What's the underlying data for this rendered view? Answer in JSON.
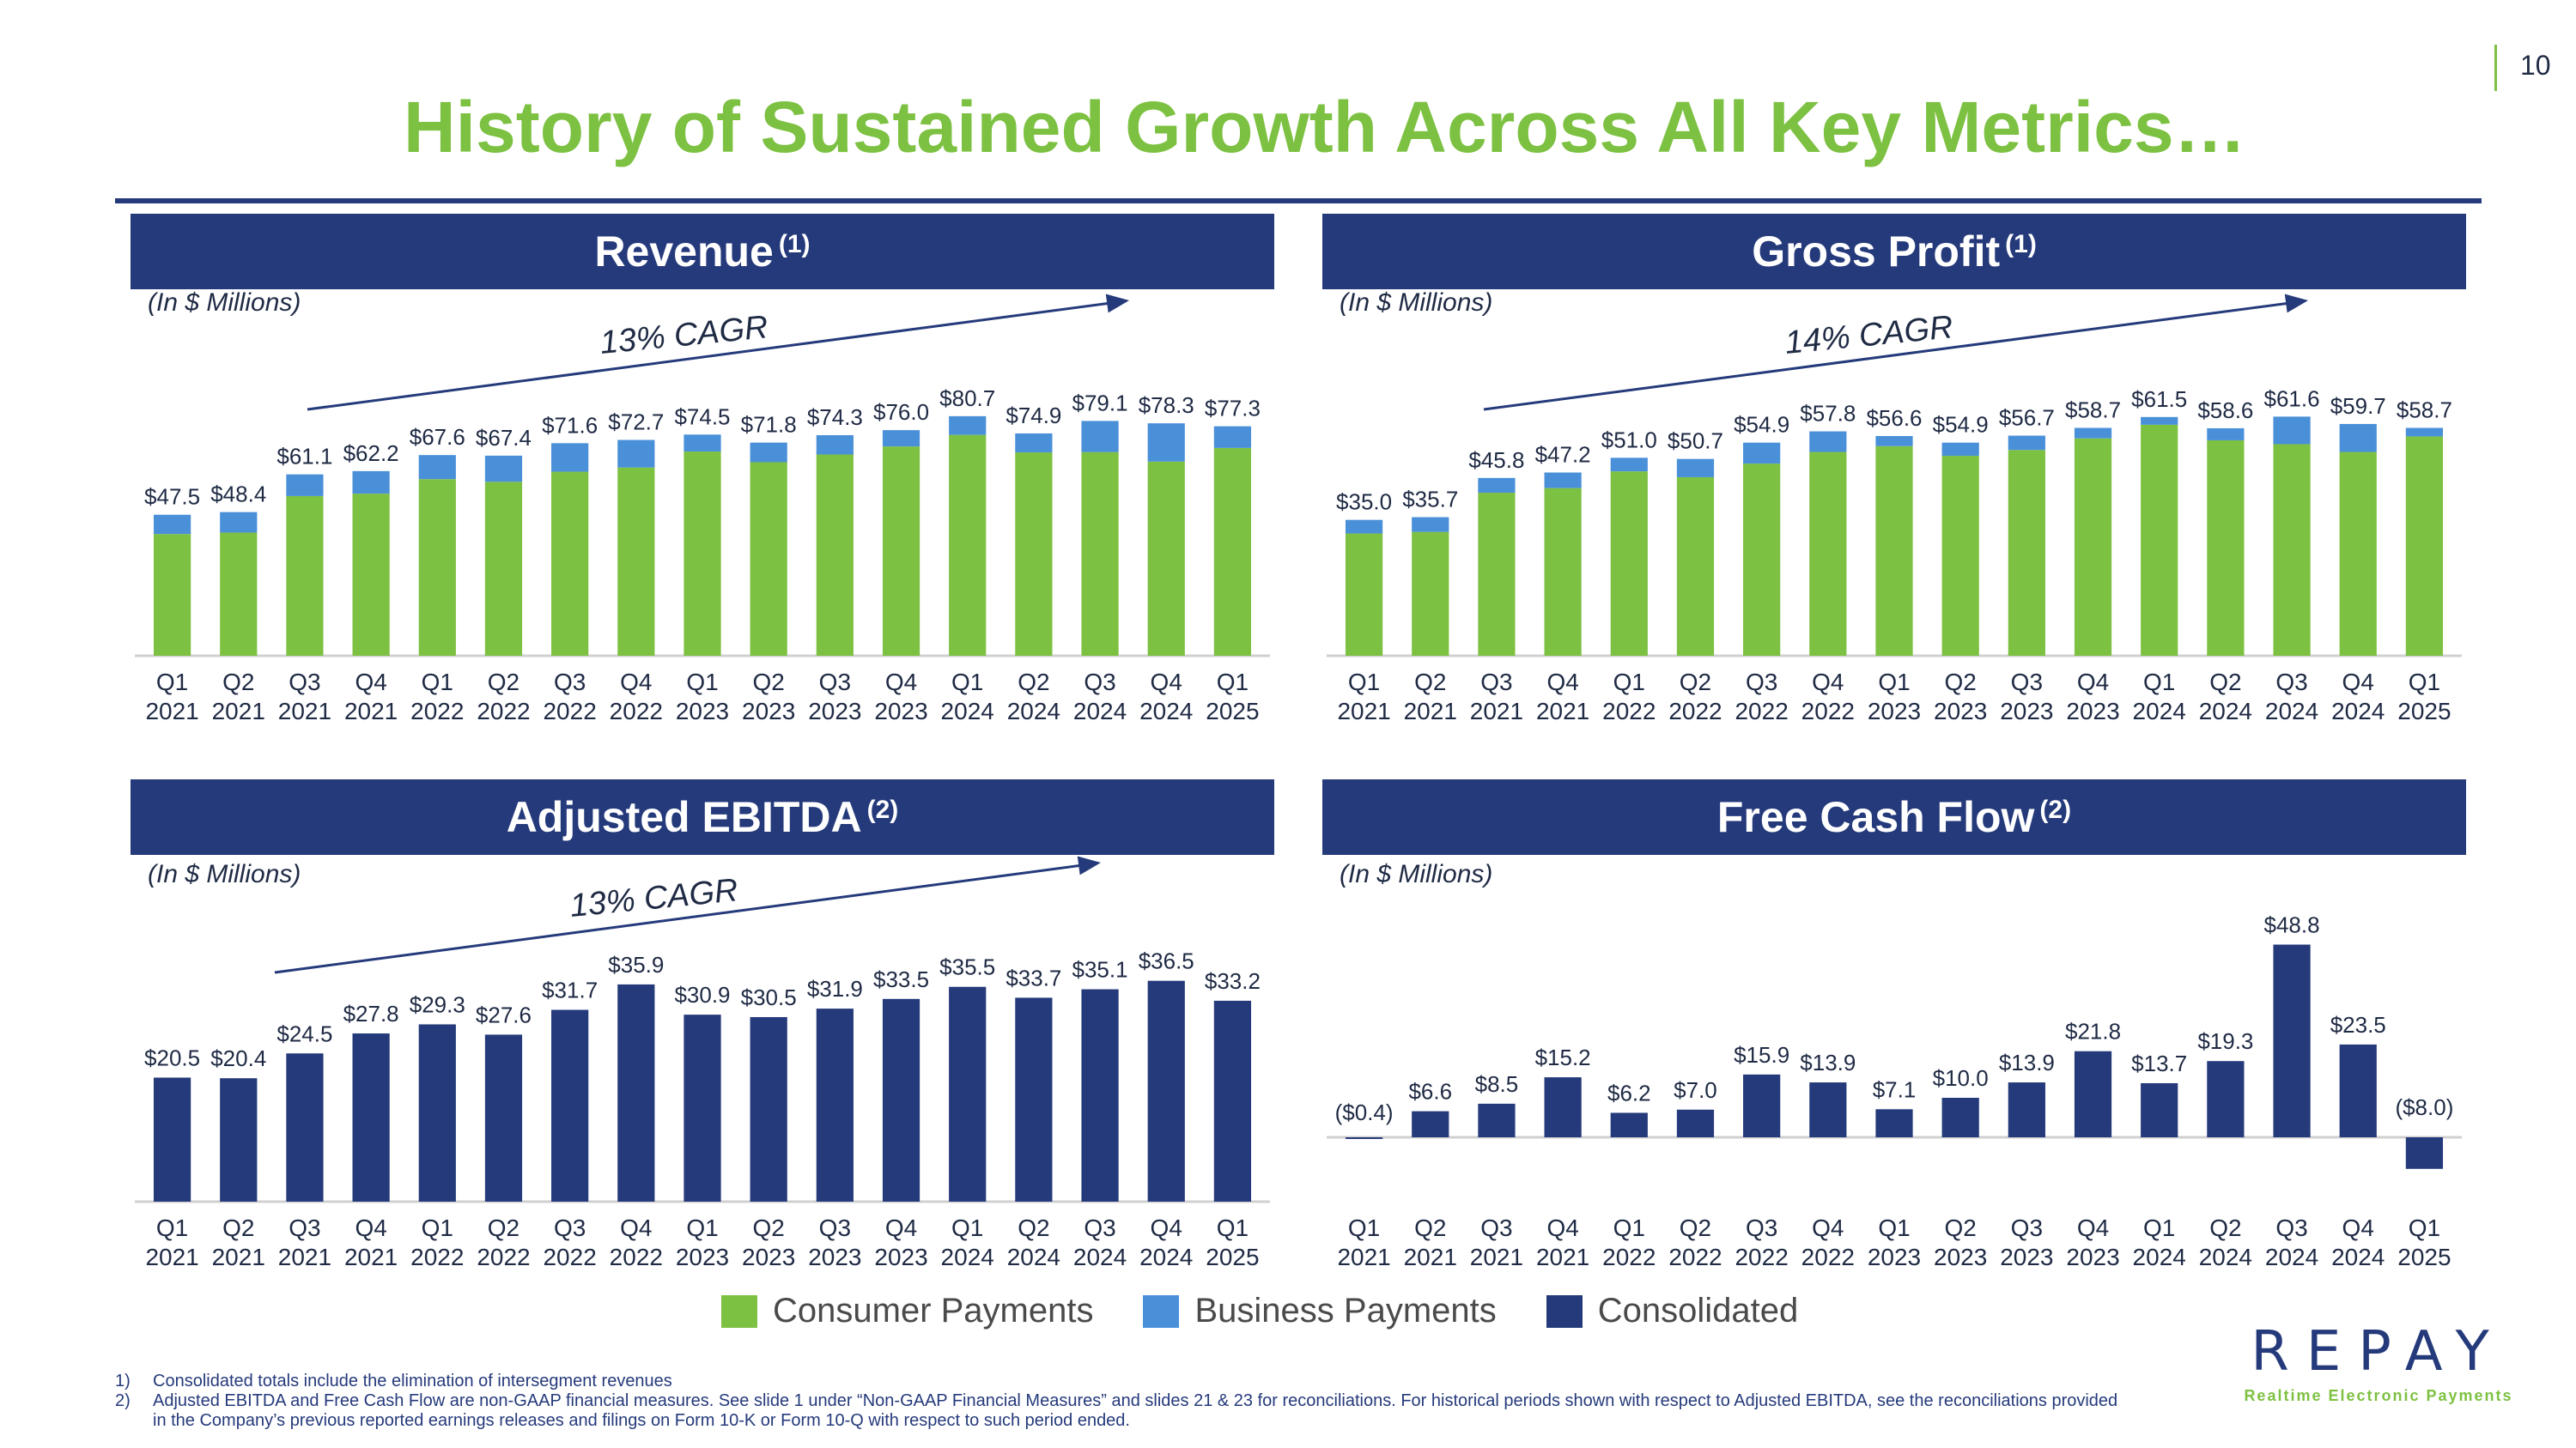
{
  "page_number": "10",
  "title": "History of Sustained Growth Across All Key Metrics…",
  "colors": {
    "consumer": "#7dc142",
    "business": "#4a90d9",
    "consolidated": "#253a7b",
    "title_green": "#7dc142",
    "header_navy": "#253a7b"
  },
  "units_note": "(In $ Millions)",
  "legend": [
    {
      "label": "Consumer Payments",
      "color": "#7dc142"
    },
    {
      "label": "Business Payments",
      "color": "#4a90d9"
    },
    {
      "label": "Consolidated",
      "color": "#253a7b"
    }
  ],
  "footnotes": [
    {
      "num": "1)",
      "text": "Consolidated totals include the elimination of intersegment revenues"
    },
    {
      "num": "2)",
      "text": "Adjusted EBITDA and Free Cash Flow are non-GAAP financial measures.  See slide 1 under “Non-GAAP Financial Measures” and slides 21 & 23 for reconciliations. For historical periods shown with respect to Adjusted EBITDA, see the reconciliations provided in the Company’s previous reported earnings releases and filings on Form 10-K or Form 10-Q with respect to such period ended."
    }
  ],
  "logo": {
    "word": "REPAY",
    "tagline": "Realtime Electronic Payments"
  },
  "chart_data": [
    {
      "type": "bar",
      "stacked": true,
      "title": "Revenue",
      "title_sup": "(1)",
      "note": "(In $ Millions)",
      "cagr": "13% CAGR",
      "quarters": [
        "Q1",
        "Q2",
        "Q3",
        "Q4",
        "Q1",
        "Q2",
        "Q3",
        "Q4",
        "Q1",
        "Q2",
        "Q3",
        "Q4",
        "Q1",
        "Q2",
        "Q3",
        "Q4",
        "Q1"
      ],
      "years": [
        "2021",
        "2021",
        "2021",
        "2021",
        "2022",
        "2022",
        "2022",
        "2022",
        "2023",
        "2023",
        "2023",
        "2023",
        "2024",
        "2024",
        "2024",
        "2024",
        "2025"
      ],
      "totals": [
        47.5,
        48.4,
        61.1,
        62.2,
        67.6,
        67.4,
        71.6,
        72.7,
        74.5,
        71.8,
        74.3,
        76.0,
        80.7,
        74.9,
        79.1,
        78.3,
        77.3
      ],
      "total_labels": [
        "$47.5",
        "$48.4",
        "$61.1",
        "$62.2",
        "$67.6",
        "$67.4",
        "$71.6",
        "$72.7",
        "$74.5",
        "$71.8",
        "$74.3",
        "$76.0",
        "$80.7",
        "$74.9",
        "$79.1",
        "$78.3",
        "$77.3"
      ],
      "series": [
        {
          "name": "Consumer Payments",
          "values": [
            41.0,
            41.5,
            53.8,
            54.6,
            59.5,
            58.6,
            62.0,
            63.4,
            68.8,
            65.2,
            67.8,
            70.5,
            74.4,
            68.5,
            68.6,
            65.4,
            70.0
          ]
        },
        {
          "name": "Business Payments",
          "values": [
            6.5,
            6.9,
            7.3,
            7.6,
            8.1,
            8.8,
            9.6,
            9.3,
            5.7,
            6.6,
            6.5,
            5.5,
            6.3,
            6.4,
            10.5,
            12.9,
            7.3
          ]
        }
      ],
      "ylim": [
        0,
        85
      ]
    },
    {
      "type": "bar",
      "stacked": true,
      "title": "Gross Profit",
      "title_sup": "(1)",
      "note": "(In $ Millions)",
      "cagr": "14% CAGR",
      "quarters": [
        "Q1",
        "Q2",
        "Q3",
        "Q4",
        "Q1",
        "Q2",
        "Q3",
        "Q4",
        "Q1",
        "Q2",
        "Q3",
        "Q4",
        "Q1",
        "Q2",
        "Q3",
        "Q4",
        "Q1"
      ],
      "years": [
        "2021",
        "2021",
        "2021",
        "2021",
        "2022",
        "2022",
        "2022",
        "2022",
        "2023",
        "2023",
        "2023",
        "2023",
        "2024",
        "2024",
        "2024",
        "2024",
        "2025"
      ],
      "totals": [
        35.0,
        35.7,
        45.8,
        47.2,
        51.0,
        50.7,
        54.9,
        57.8,
        56.6,
        54.9,
        56.7,
        58.7,
        61.5,
        58.6,
        61.6,
        59.7,
        58.7
      ],
      "total_labels": [
        "$35.0",
        "$35.7",
        "$45.8",
        "$47.2",
        "$51.0",
        "$50.7",
        "$54.9",
        "$57.8",
        "$56.6",
        "$54.9",
        "$56.7",
        "$58.7",
        "$61.5",
        "$58.6",
        "$61.6",
        "$59.7",
        "$58.7"
      ],
      "series": [
        {
          "name": "Consumer Payments",
          "values": [
            31.5,
            31.9,
            42.0,
            43.2,
            47.5,
            46.0,
            49.5,
            52.5,
            54.0,
            51.5,
            53.0,
            56.0,
            59.5,
            55.5,
            54.5,
            52.5,
            56.5
          ]
        },
        {
          "name": "Business Payments",
          "values": [
            3.5,
            3.8,
            3.8,
            4.0,
            3.5,
            4.7,
            5.4,
            5.3,
            2.6,
            3.4,
            3.7,
            2.7,
            2.0,
            3.1,
            7.1,
            7.2,
            2.2
          ]
        }
      ],
      "ylim": [
        0,
        65
      ]
    },
    {
      "type": "bar",
      "stacked": false,
      "title": "Adjusted EBITDA",
      "title_sup": "(2)",
      "note": "(In $ Millions)",
      "cagr": "13% CAGR",
      "quarters": [
        "Q1",
        "Q2",
        "Q3",
        "Q4",
        "Q1",
        "Q2",
        "Q3",
        "Q4",
        "Q1",
        "Q2",
        "Q3",
        "Q4",
        "Q1",
        "Q2",
        "Q3",
        "Q4",
        "Q1"
      ],
      "years": [
        "2021",
        "2021",
        "2021",
        "2021",
        "2022",
        "2022",
        "2022",
        "2022",
        "2023",
        "2023",
        "2023",
        "2023",
        "2024",
        "2024",
        "2024",
        "2024",
        "2025"
      ],
      "series": [
        {
          "name": "Consolidated",
          "values": [
            20.5,
            20.4,
            24.5,
            27.8,
            29.3,
            27.6,
            31.7,
            35.9,
            30.9,
            30.5,
            31.9,
            33.5,
            35.5,
            33.7,
            35.1,
            36.5,
            33.2
          ]
        }
      ],
      "labels": [
        "$20.5",
        "$20.4",
        "$24.5",
        "$27.8",
        "$29.3",
        "$27.6",
        "$31.7",
        "$35.9",
        "$30.9",
        "$30.5",
        "$31.9",
        "$33.5",
        "$35.5",
        "$33.7",
        "$35.1",
        "$36.5",
        "$33.2"
      ],
      "ylim": [
        0,
        40
      ]
    },
    {
      "type": "bar",
      "stacked": false,
      "title": "Free Cash Flow",
      "title_sup": "(2)",
      "note": "(In $ Millions)",
      "quarters": [
        "Q1",
        "Q2",
        "Q3",
        "Q4",
        "Q1",
        "Q2",
        "Q3",
        "Q4",
        "Q1",
        "Q2",
        "Q3",
        "Q4",
        "Q1",
        "Q2",
        "Q3",
        "Q4",
        "Q1"
      ],
      "years": [
        "2021",
        "2021",
        "2021",
        "2021",
        "2022",
        "2022",
        "2022",
        "2022",
        "2023",
        "2023",
        "2023",
        "2023",
        "2024",
        "2024",
        "2024",
        "2024",
        "2025"
      ],
      "series": [
        {
          "name": "Consolidated",
          "values": [
            -0.4,
            6.6,
            8.5,
            15.2,
            6.2,
            7.0,
            15.9,
            13.9,
            7.1,
            10.0,
            13.9,
            21.8,
            13.7,
            19.3,
            48.8,
            23.5,
            -8.0
          ]
        }
      ],
      "labels": [
        "($0.4)",
        "$6.6",
        "$8.5",
        "$15.2",
        "$6.2",
        "$7.0",
        "$15.9",
        "$13.9",
        "$7.1",
        "$10.0",
        "$13.9",
        "$21.8",
        "$13.7",
        "$19.3",
        "$48.8",
        "$23.5",
        "($8.0)"
      ],
      "ylim": [
        -10,
        50
      ]
    }
  ]
}
